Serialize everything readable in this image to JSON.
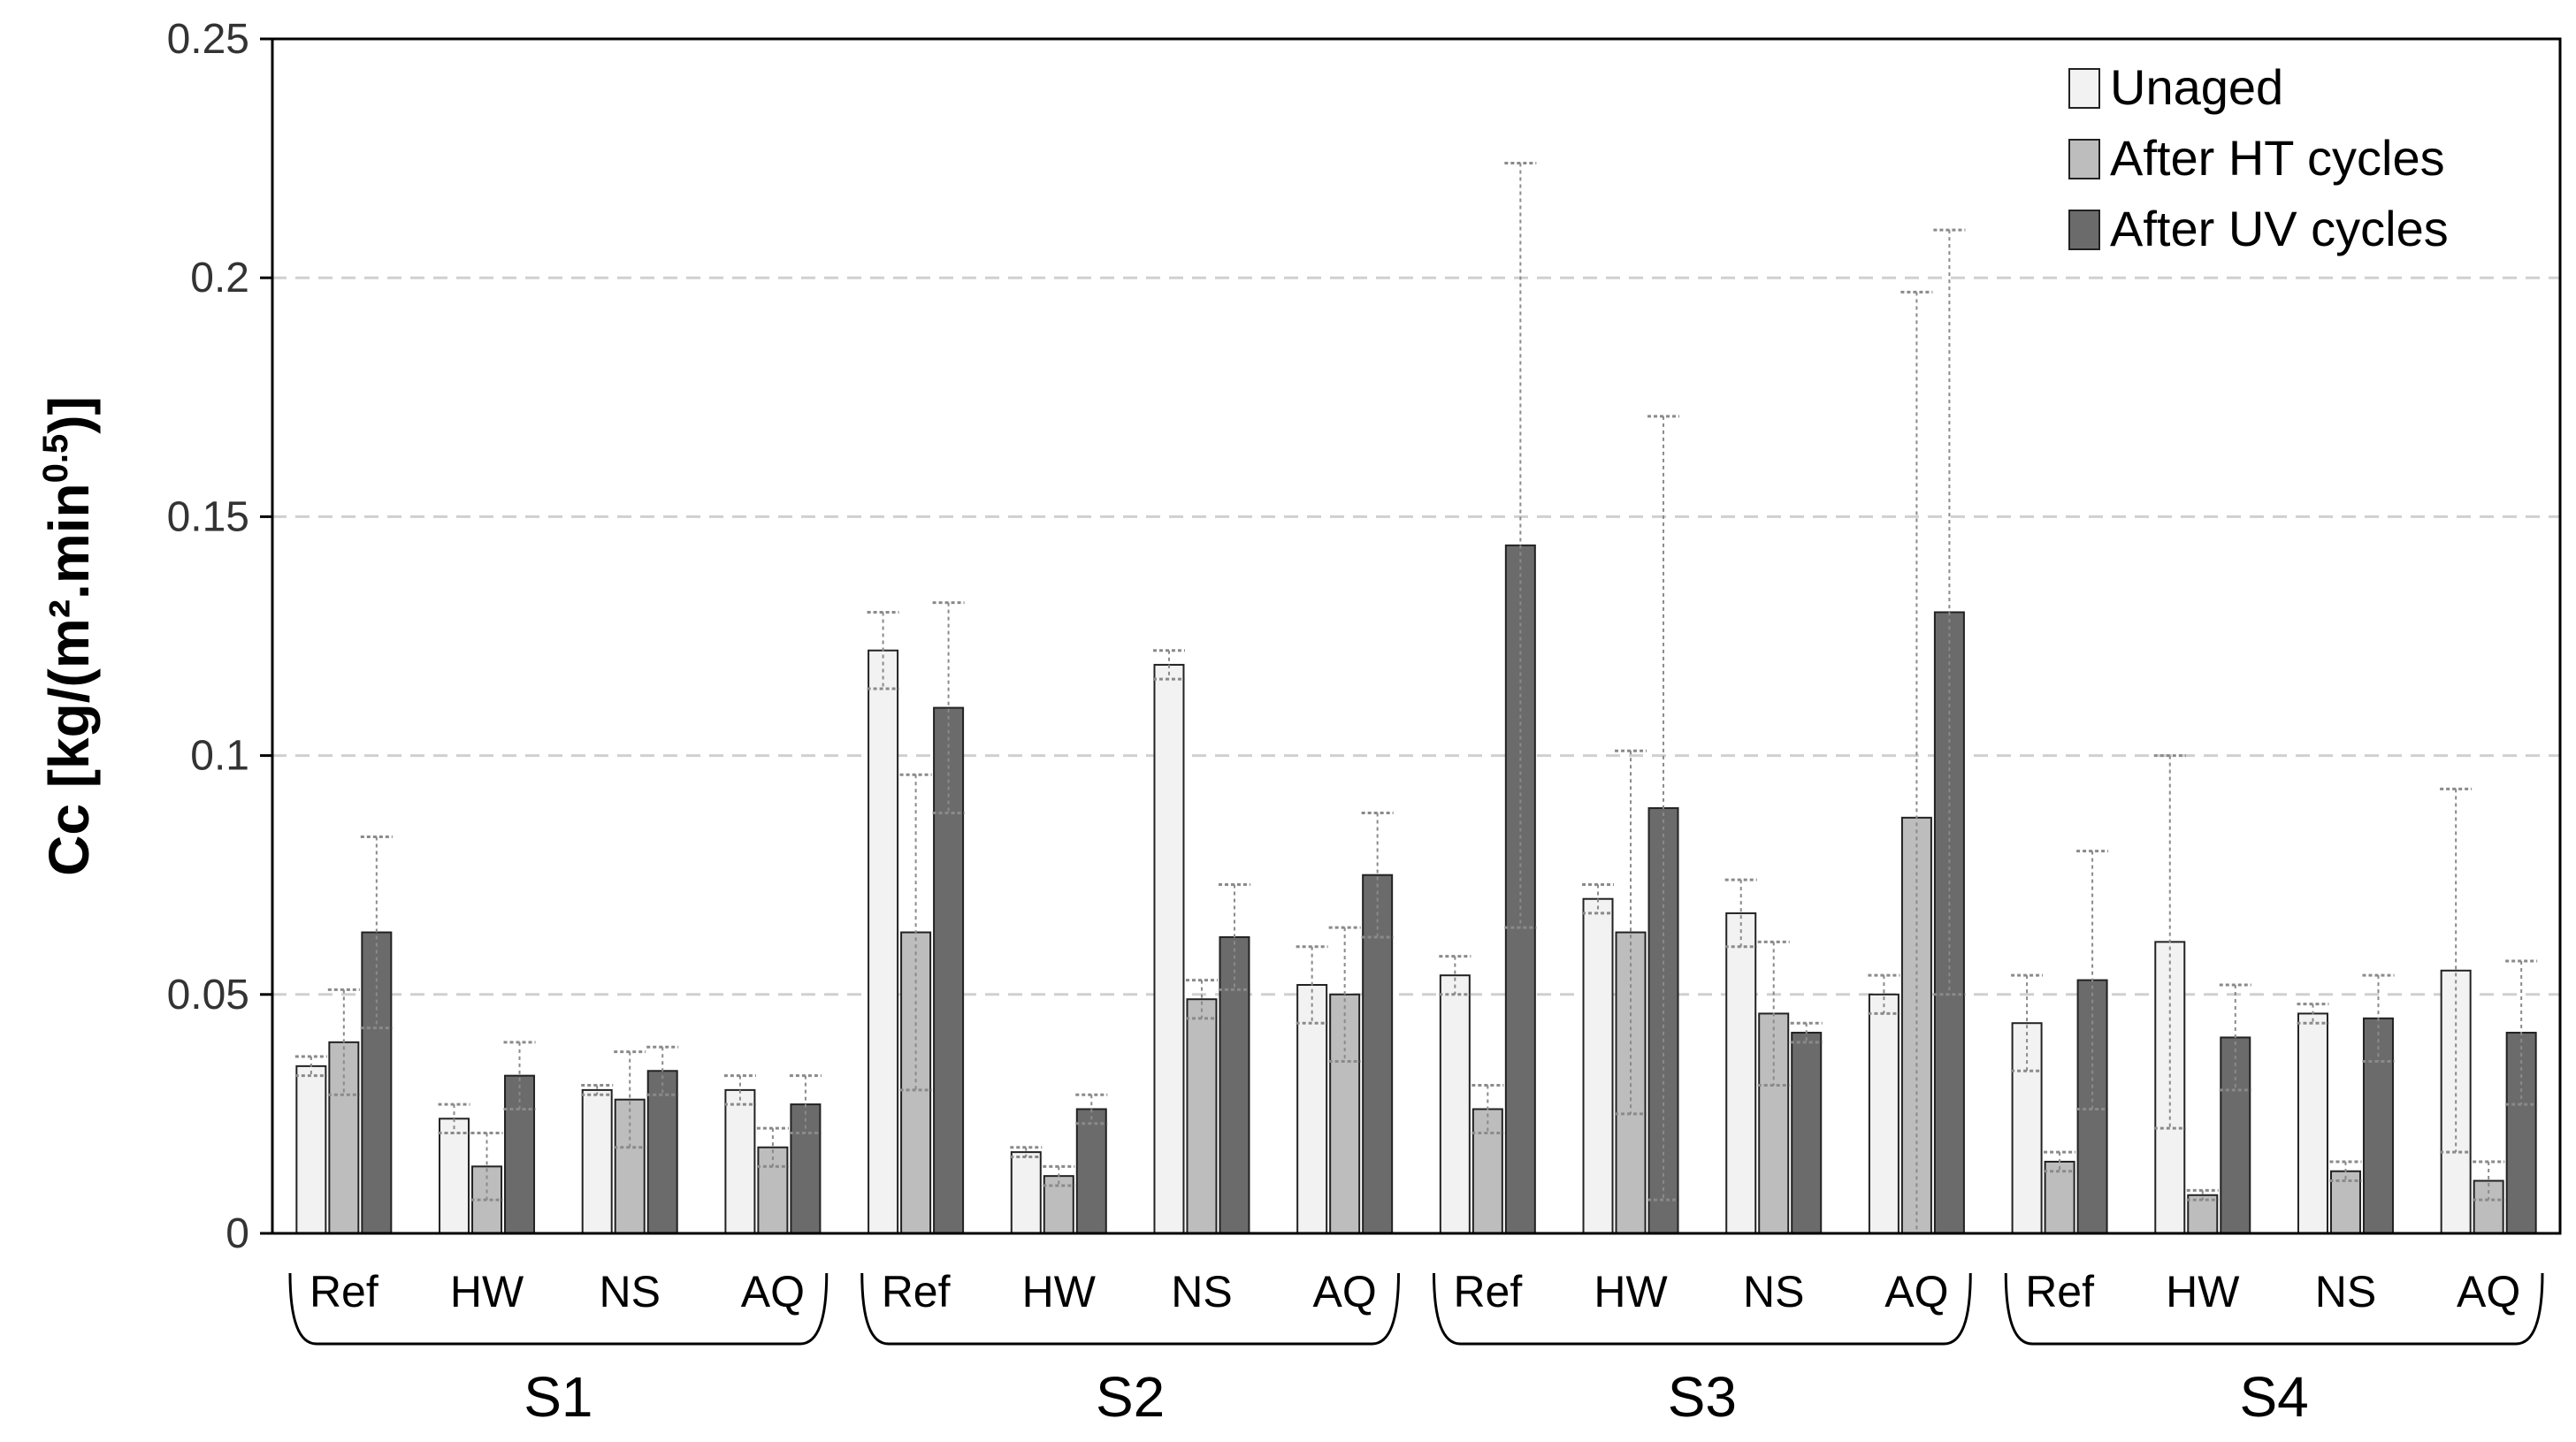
{
  "chart_data": {
    "type": "bar",
    "ylabel": "Cc [kg/(m².min⁰·⁵)]",
    "ylabel_main": "Cc [kg/(m².min",
    "ylabel_sup": "0.5",
    "ylabel_end": ")]",
    "ylim": [
      0,
      0.25
    ],
    "yticks": [
      0,
      0.05,
      0.1,
      0.15,
      0.2,
      0.25
    ],
    "ytick_labels": [
      "0",
      "0.05",
      "0.1",
      "0.15",
      "0.2",
      "0.25"
    ],
    "grid": "horizontal dashed",
    "legend_position": "top-right",
    "groups": [
      {
        "name": "S1",
        "categories": [
          "Ref",
          "HW",
          "NS",
          "AQ"
        ]
      },
      {
        "name": "S2",
        "categories": [
          "Ref",
          "HW",
          "NS",
          "AQ"
        ]
      },
      {
        "name": "S3",
        "categories": [
          "Ref",
          "HW",
          "NS",
          "AQ"
        ]
      },
      {
        "name": "S4",
        "categories": [
          "Ref",
          "HW",
          "NS",
          "AQ"
        ]
      }
    ],
    "series": [
      {
        "name": "Unaged",
        "color": "#f2f2f2",
        "values": [
          0.035,
          0.024,
          0.03,
          0.03,
          0.122,
          0.017,
          0.119,
          0.052,
          0.054,
          0.07,
          0.067,
          0.05,
          0.044,
          0.061,
          0.046,
          0.055
        ],
        "errors": [
          0.002,
          0.003,
          0.001,
          0.003,
          0.008,
          0.001,
          0.003,
          0.008,
          0.004,
          0.003,
          0.007,
          0.004,
          0.01,
          0.039,
          0.002,
          0.038
        ]
      },
      {
        "name": "After HT cycles",
        "color": "#bdbdbd",
        "values": [
          0.04,
          0.014,
          0.028,
          0.018,
          0.063,
          0.012,
          0.049,
          0.05,
          0.026,
          0.063,
          0.046,
          0.087,
          0.015,
          0.008,
          0.013,
          0.011
        ],
        "errors": [
          0.011,
          0.007,
          0.01,
          0.004,
          0.033,
          0.002,
          0.004,
          0.014,
          0.005,
          0.038,
          0.015,
          0.11,
          0.002,
          0.001,
          0.002,
          0.004
        ]
      },
      {
        "name": "After UV cycles",
        "color": "#6b6b6b",
        "values": [
          0.063,
          0.033,
          0.034,
          0.027,
          0.11,
          0.026,
          0.062,
          0.075,
          0.144,
          0.089,
          0.042,
          0.13,
          0.053,
          0.041,
          0.045,
          0.042
        ],
        "errors": [
          0.02,
          0.007,
          0.005,
          0.006,
          0.022,
          0.003,
          0.011,
          0.013,
          0.08,
          0.082,
          0.002,
          0.08,
          0.027,
          0.011,
          0.009,
          0.015
        ]
      }
    ]
  }
}
